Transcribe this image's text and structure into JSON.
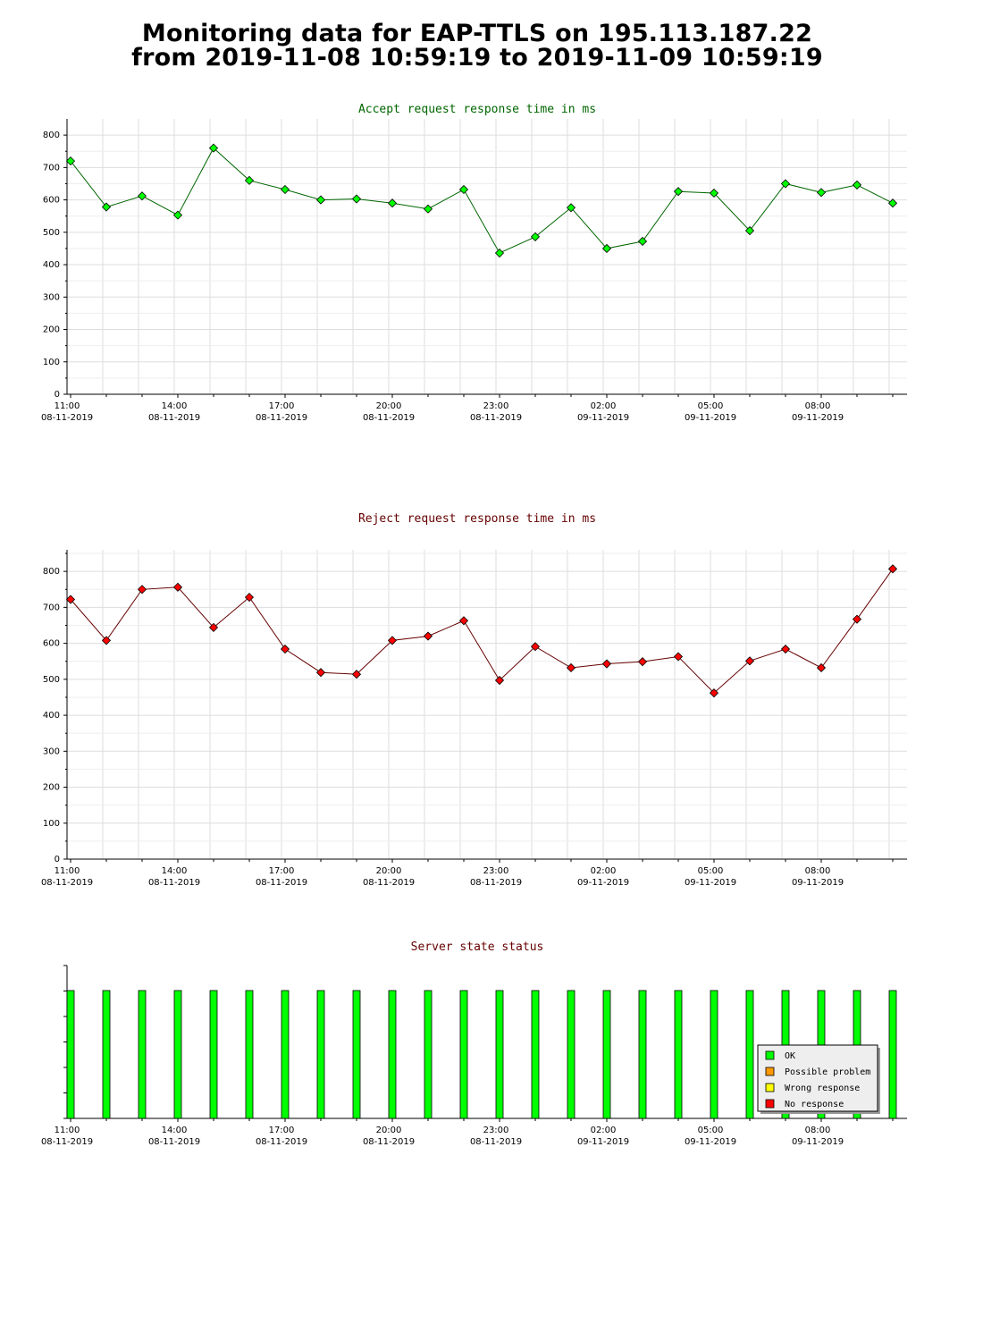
{
  "page": {
    "title_line1": "Monitoring data for EAP-TTLS on 195.113.187.22",
    "title_line2": "from 2019-11-08 10:59:19 to 2019-11-09 10:59:19"
  },
  "x_axis_labels": [
    {
      "time": "11:00",
      "date": "08-11-2019"
    },
    {
      "time": "14:00",
      "date": "08-11-2019"
    },
    {
      "time": "17:00",
      "date": "08-11-2019"
    },
    {
      "time": "20:00",
      "date": "08-11-2019"
    },
    {
      "time": "23:00",
      "date": "08-11-2019"
    },
    {
      "time": "02:00",
      "date": "09-11-2019"
    },
    {
      "time": "05:00",
      "date": "09-11-2019"
    },
    {
      "time": "08:00",
      "date": "09-11-2019"
    }
  ],
  "legend": [
    {
      "label": "OK",
      "color": "#00ff00"
    },
    {
      "label": "Possible problem",
      "color": "#ff9900"
    },
    {
      "label": "Wrong response",
      "color": "#ffff00"
    },
    {
      "label": "No response",
      "color": "#ff0000"
    }
  ],
  "chart_data": [
    {
      "type": "line",
      "title": "Accept request response time in ms",
      "title_color": "#006600",
      "marker_color": "#00ff00",
      "line_color": "#006600",
      "ylim": [
        0,
        850
      ],
      "yticks": [
        0,
        100,
        200,
        300,
        400,
        500,
        600,
        700,
        800
      ],
      "x": [
        "11:00",
        "12:00",
        "13:00",
        "14:00",
        "15:00",
        "16:00",
        "17:00",
        "18:00",
        "19:00",
        "20:00",
        "21:00",
        "22:00",
        "23:00",
        "00:00",
        "01:00",
        "02:00",
        "03:00",
        "04:00",
        "05:00",
        "06:00",
        "07:00",
        "08:00",
        "09:00",
        "10:00"
      ],
      "values": [
        720,
        578,
        612,
        553,
        760,
        660,
        632,
        600,
        603,
        590,
        572,
        632,
        436,
        486,
        576,
        450,
        472,
        626,
        621,
        505,
        650,
        623,
        646,
        590
      ],
      "grid": true
    },
    {
      "type": "line",
      "title": "Reject request response time in ms",
      "title_color": "#660000",
      "marker_color": "#ff0000",
      "line_color": "#660000",
      "ylim": [
        0,
        860
      ],
      "yticks": [
        0,
        100,
        200,
        300,
        400,
        500,
        600,
        700,
        800
      ],
      "x": [
        "11:00",
        "12:00",
        "13:00",
        "14:00",
        "15:00",
        "16:00",
        "17:00",
        "18:00",
        "19:00",
        "20:00",
        "21:00",
        "22:00",
        "23:00",
        "00:00",
        "01:00",
        "02:00",
        "03:00",
        "04:00",
        "05:00",
        "06:00",
        "07:00",
        "08:00",
        "09:00",
        "10:00"
      ],
      "values": [
        722,
        608,
        750,
        756,
        644,
        728,
        584,
        519,
        514,
        608,
        620,
        663,
        497,
        591,
        532,
        543,
        549,
        563,
        462,
        551,
        584,
        532,
        667,
        807
      ],
      "grid": true
    },
    {
      "type": "bar",
      "title": "Server state status",
      "title_color": "#660000",
      "x": [
        "11:00",
        "12:00",
        "13:00",
        "14:00",
        "15:00",
        "16:00",
        "17:00",
        "18:00",
        "19:00",
        "20:00",
        "21:00",
        "22:00",
        "23:00",
        "00:00",
        "01:00",
        "02:00",
        "03:00",
        "04:00",
        "05:00",
        "06:00",
        "07:00",
        "08:00",
        "09:00",
        "10:00"
      ],
      "status": [
        "OK",
        "OK",
        "OK",
        "OK",
        "OK",
        "OK",
        "OK",
        "OK",
        "OK",
        "OK",
        "OK",
        "OK",
        "OK",
        "OK",
        "OK",
        "OK",
        "OK",
        "OK",
        "OK",
        "OK",
        "OK",
        "OK",
        "OK",
        "OK"
      ],
      "legend_position": "bottom-right",
      "grid": false
    }
  ]
}
